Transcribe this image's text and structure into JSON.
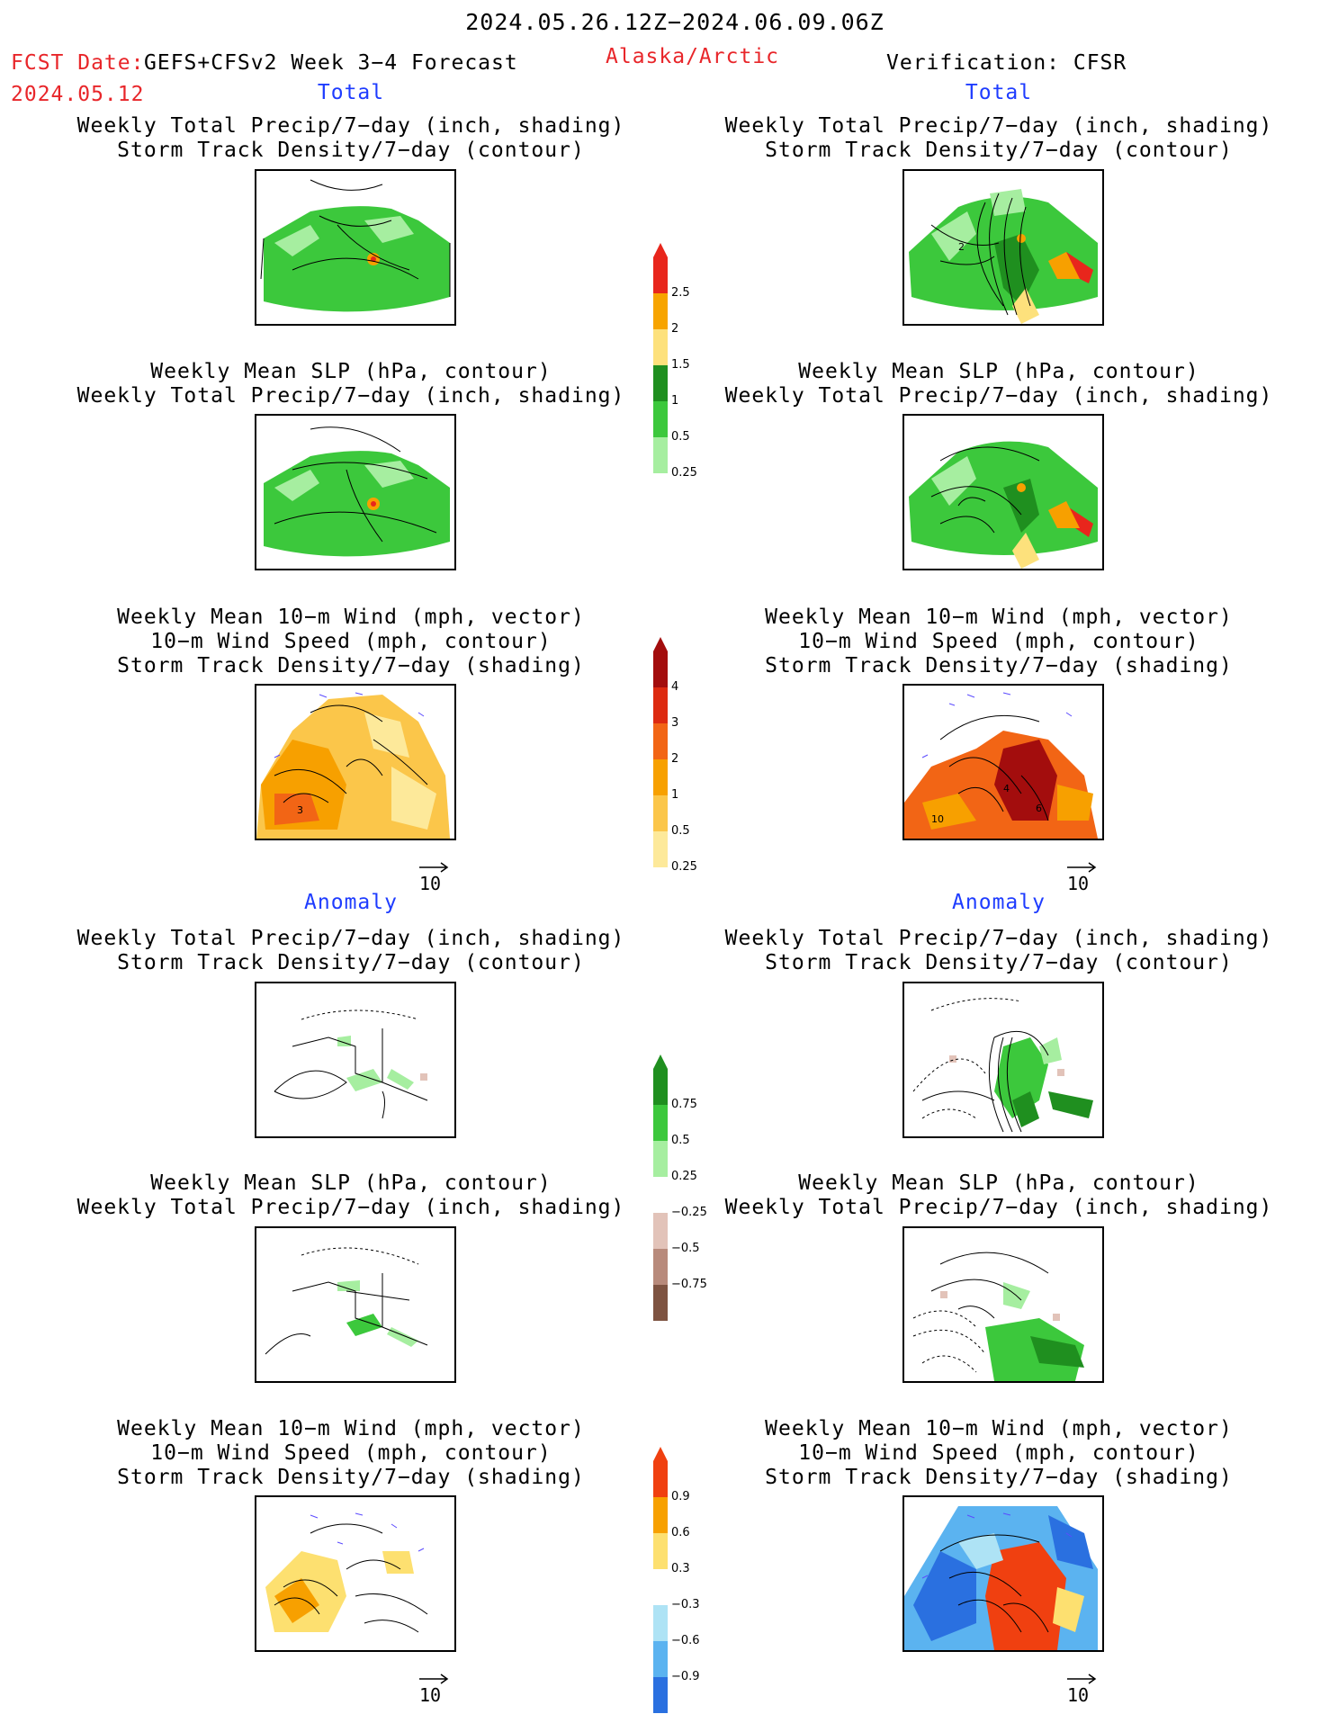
{
  "header": {
    "date_range": "2024.05.26.12Z−2024.06.09.06Z",
    "fcst_label": "FCST Date:",
    "model": "GEFS+CFSv2 Week 3−4 Forecast",
    "fcst_date": "2024.05.12",
    "region": "Alaska/Arctic",
    "verification": "Verification: CFSR"
  },
  "sections": {
    "total": "Total",
    "anomaly": "Anomaly"
  },
  "titles": {
    "precip_storm_1": "Weekly Total Precip/7−day (inch, shading)",
    "precip_storm_2": "Storm Track Density/7−day (contour)",
    "slp_precip_1": "Weekly Mean SLP (hPa, contour)",
    "slp_precip_2": "Weekly Total Precip/7−day (inch, shading)",
    "wind_1": "Weekly Mean 10−m Wind (mph, vector)",
    "wind_2": "10−m Wind Speed (mph, contour)",
    "wind_3": "Storm Track Density/7−day (shading)"
  },
  "vector_ref": "10",
  "colorbars": {
    "precip_total": {
      "ticks": [
        "2.5",
        "2",
        "1.5",
        "1",
        "0.5",
        "0.25"
      ],
      "colors": [
        "#e8261c",
        "#f7a400",
        "#fde17c",
        "#1f8f1f",
        "#3cc83c",
        "#a6eea0"
      ]
    },
    "storm_total": {
      "ticks": [
        "4",
        "3",
        "2",
        "1",
        "0.5",
        "0.25"
      ],
      "colors": [
        "#a30d0d",
        "#dd2a10",
        "#f26515",
        "#f7a000",
        "#fbc64a",
        "#fde99a"
      ]
    },
    "precip_anom": {
      "ticks": [
        "0.75",
        "0.5",
        "0.25",
        "−0.25",
        "−0.5",
        "−0.75"
      ],
      "colors": [
        "#1f8f1f",
        "#3cc83c",
        "#a6eea0",
        "#ffffff",
        "#e2c3b9",
        "#b88a7b",
        "#7e5341"
      ]
    },
    "storm_anom": {
      "ticks": [
        "0.9",
        "0.6",
        "0.3",
        "−0.3",
        "−0.6",
        "−0.9"
      ],
      "colors": [
        "#f04010",
        "#f7a000",
        "#fde070",
        "#ffffff",
        "#aee3f5",
        "#5bb3f0",
        "#2a70e0"
      ]
    },
    "map_labels": {
      "p_right_total_1": "2",
      "p_left_total_3": "3",
      "p_right_total_3_a": "4",
      "p_right_total_3_b": "6",
      "p_right_total_3_c": "10"
    }
  }
}
